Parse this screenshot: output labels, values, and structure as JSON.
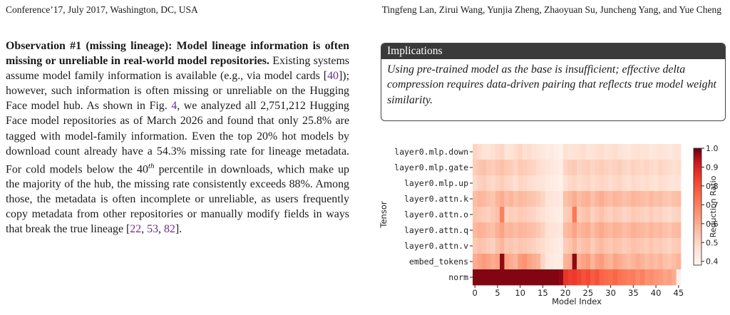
{
  "header": {
    "left": "Conference’17, July 2017, Washington, DC, USA",
    "right": "Tingfeng Lan, Zirui Wang, Yunjia Zheng, Zhaoyuan Su, Juncheng Yang, and Yue Cheng"
  },
  "observation": {
    "bold_lead": "Observation #1 (missing lineage): Model lineage information is often missing or unreliable in real-world model repositories.",
    "t1": " Existing systems assume model family information is available (e.g., via model cards [",
    "c1": "40",
    "t2": "]); however, such information is often missing or unreliable on the Hugging Face model hub. As shown in Fig. ",
    "c2": "4",
    "t3": ", we analyzed all 2,751,212 Hugging Face model repositories as of March 2026 and found that only 25.8% are tagged with model-family information. Even the top 20% hot models by download count already have a 54.3% missing rate for lineage metadata. For cold models below the 40",
    "sup": "th",
    "t4": " percentile in downloads, which make up the majority of the hub, the missing rate consistently exceeds 88%. Among those, the metadata is often incomplete or unreliable, as users frequently copy metadata from other repositories or manually modify fields in ways that break the true lineage [",
    "c3": "22",
    "sep1": ", ",
    "c4": "53",
    "sep2": ", ",
    "c5": "82",
    "t5": "]."
  },
  "implications": {
    "title": "Implications",
    "body": "Using pre-trained model as the base is insufficient; effective delta compression requires data-driven pairing that reflects true model weight similarity."
  },
  "chart_data": {
    "type": "heatmap",
    "xlabel": "Model Index",
    "ylabel": "Tensor",
    "colorbar_label": "Reduction Ratio",
    "colorbar_ticks": [
      "1.0",
      "0.9",
      "0.8",
      "0.7",
      "0.6",
      "0.5",
      "0.4"
    ],
    "colorbar_range": [
      0.38,
      1.0
    ],
    "x_ticks": [
      "0",
      "5",
      "10",
      "15",
      "20",
      "25",
      "30",
      "35",
      "40",
      "45"
    ],
    "x_range": [
      0,
      46
    ],
    "rows": [
      "layer0.mlp.down",
      "layer0.mlp.gate",
      "layer0.mlp.up",
      "layer0.attn.k",
      "layer0.attn.o",
      "layer0.attn.q",
      "layer0.attn.v",
      "embed_tokens",
      "norm"
    ],
    "values": [
      [
        0.5,
        0.48,
        0.46,
        0.45,
        0.47,
        0.49,
        0.5,
        0.45,
        0.46,
        0.48,
        0.5,
        0.47,
        0.48,
        0.46,
        0.45,
        0.44,
        0.42,
        0.43,
        0.41,
        0.4,
        0.47,
        0.45,
        0.46,
        0.47,
        0.48,
        0.45,
        0.46,
        0.47,
        0.48,
        0.46,
        0.47,
        0.48,
        0.46,
        0.45,
        0.44,
        0.46,
        0.47,
        0.45,
        0.46,
        0.44,
        0.45,
        0.46,
        0.45,
        0.44,
        0.45,
        0.46
      ],
      [
        0.52,
        0.54,
        0.55,
        0.53,
        0.52,
        0.54,
        0.55,
        0.53,
        0.52,
        0.5,
        0.53,
        0.52,
        0.51,
        0.5,
        0.48,
        0.47,
        0.45,
        0.44,
        0.43,
        0.42,
        0.5,
        0.52,
        0.53,
        0.5,
        0.51,
        0.52,
        0.5,
        0.51,
        0.52,
        0.51,
        0.5,
        0.51,
        0.52,
        0.5,
        0.49,
        0.51,
        0.5,
        0.49,
        0.5,
        0.49,
        0.48,
        0.5,
        0.49,
        0.48,
        0.47,
        0.48
      ],
      [
        0.49,
        0.51,
        0.52,
        0.5,
        0.49,
        0.51,
        0.52,
        0.5,
        0.49,
        0.47,
        0.5,
        0.49,
        0.48,
        0.47,
        0.46,
        0.45,
        0.43,
        0.42,
        0.41,
        0.4,
        0.47,
        0.49,
        0.5,
        0.48,
        0.49,
        0.5,
        0.48,
        0.49,
        0.5,
        0.49,
        0.48,
        0.49,
        0.5,
        0.48,
        0.47,
        0.49,
        0.48,
        0.47,
        0.48,
        0.47,
        0.46,
        0.48,
        0.47,
        0.46,
        0.45,
        0.46
      ],
      [
        0.56,
        0.58,
        0.57,
        0.55,
        0.54,
        0.58,
        0.6,
        0.56,
        0.58,
        0.55,
        0.57,
        0.56,
        0.55,
        0.54,
        0.52,
        0.5,
        0.46,
        0.45,
        0.44,
        0.43,
        0.55,
        0.57,
        0.6,
        0.56,
        0.58,
        0.59,
        0.55,
        0.58,
        0.6,
        0.57,
        0.56,
        0.58,
        0.57,
        0.55,
        0.56,
        0.58,
        0.57,
        0.56,
        0.55,
        0.57,
        0.55,
        0.56,
        0.54,
        0.53,
        0.55,
        0.56
      ],
      [
        0.54,
        0.53,
        0.52,
        0.51,
        0.53,
        0.55,
        0.7,
        0.5,
        0.52,
        0.51,
        0.53,
        0.52,
        0.51,
        0.5,
        0.48,
        0.47,
        0.44,
        0.43,
        0.42,
        0.41,
        0.52,
        0.53,
        0.72,
        0.52,
        0.54,
        0.55,
        0.51,
        0.53,
        0.55,
        0.52,
        0.51,
        0.53,
        0.52,
        0.5,
        0.51,
        0.53,
        0.52,
        0.51,
        0.5,
        0.52,
        0.5,
        0.51,
        0.49,
        0.48,
        0.5,
        0.51
      ],
      [
        0.57,
        0.59,
        0.58,
        0.56,
        0.55,
        0.59,
        0.62,
        0.57,
        0.58,
        0.56,
        0.58,
        0.57,
        0.56,
        0.55,
        0.53,
        0.51,
        0.47,
        0.46,
        0.45,
        0.44,
        0.56,
        0.58,
        0.62,
        0.57,
        0.59,
        0.6,
        0.56,
        0.59,
        0.61,
        0.58,
        0.57,
        0.59,
        0.58,
        0.56,
        0.57,
        0.59,
        0.58,
        0.57,
        0.56,
        0.58,
        0.56,
        0.57,
        0.55,
        0.54,
        0.56,
        0.57
      ],
      [
        0.53,
        0.55,
        0.54,
        0.52,
        0.51,
        0.55,
        0.58,
        0.53,
        0.54,
        0.52,
        0.54,
        0.53,
        0.52,
        0.51,
        0.49,
        0.48,
        0.45,
        0.44,
        0.43,
        0.42,
        0.52,
        0.54,
        0.58,
        0.53,
        0.55,
        0.56,
        0.52,
        0.55,
        0.57,
        0.54,
        0.53,
        0.55,
        0.54,
        0.52,
        0.53,
        0.55,
        0.54,
        0.53,
        0.52,
        0.54,
        0.52,
        0.53,
        0.51,
        0.5,
        0.52,
        0.53
      ],
      [
        0.6,
        0.62,
        0.64,
        0.62,
        0.6,
        0.62,
        0.97,
        0.62,
        0.6,
        0.58,
        0.64,
        0.66,
        0.62,
        0.6,
        0.58,
        0.5,
        0.44,
        0.43,
        0.42,
        0.42,
        0.58,
        0.6,
        0.97,
        0.6,
        0.62,
        0.64,
        0.58,
        0.62,
        0.64,
        0.6,
        0.58,
        0.62,
        0.6,
        0.58,
        0.56,
        0.58,
        0.6,
        0.58,
        0.56,
        0.58,
        0.56,
        0.58,
        0.55,
        0.54,
        0.56,
        0.58
      ],
      [
        0.98,
        0.98,
        0.98,
        0.98,
        0.98,
        0.98,
        0.98,
        0.98,
        0.98,
        0.98,
        0.98,
        0.98,
        0.98,
        0.98,
        0.98,
        0.98,
        0.98,
        0.98,
        0.98,
        0.97,
        0.86,
        0.84,
        0.85,
        0.83,
        0.8,
        0.82,
        0.78,
        0.8,
        0.76,
        0.75,
        0.74,
        0.76,
        0.73,
        0.72,
        0.7,
        0.71,
        0.68,
        0.7,
        0.66,
        0.67,
        0.65,
        0.64,
        0.62,
        0.63,
        0.6,
        0.4
      ]
    ]
  }
}
